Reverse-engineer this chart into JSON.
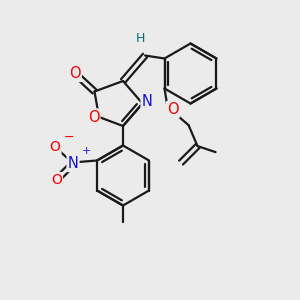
{
  "bg_color": "#ebebeb",
  "bond_color": "#1a1a1a",
  "bond_width": 1.6,
  "atom_colors": {
    "O": "#ff0000",
    "N": "#1010cc",
    "H": "#007070",
    "C": "#1a1a1a"
  },
  "figsize": [
    3.0,
    3.0
  ],
  "dpi": 100
}
